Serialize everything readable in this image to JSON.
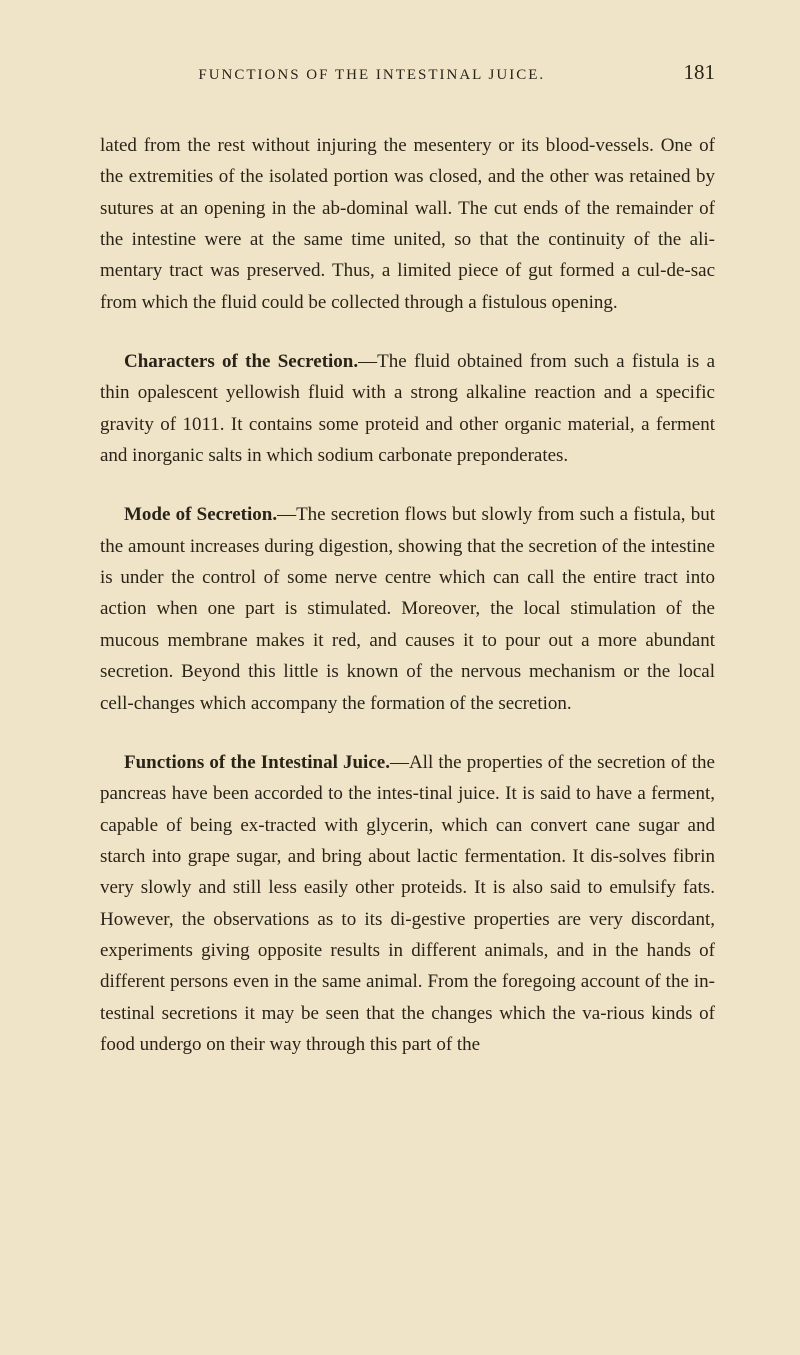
{
  "header": {
    "running_title": "FUNCTIONS OF THE INTESTINAL JUICE.",
    "page_number": "181"
  },
  "paragraphs": {
    "p1": "lated from the rest without injuring the mesentery or its blood-vessels. One of the extremities of the isolated portion was closed, and the other was retained by sutures at an opening in the ab-dominal wall. The cut ends of the remainder of the intestine were at the same time united, so that the continuity of the ali-mentary tract was preserved. Thus, a limited piece of gut formed a cul-de-sac from which the fluid could be collected through a fistulous opening.",
    "p2_title": "Characters of the Secretion.",
    "p2_body": "—The fluid obtained from such a fistula is a thin opalescent yellowish fluid with a strong alkaline reaction and a specific gravity of 1011. It contains some proteid and other organic material, a ferment and inorganic salts in which sodium carbonate preponderates.",
    "p3_title": "Mode of Secretion.",
    "p3_body": "—The secretion flows but slowly from such a fistula, but the amount increases during digestion, showing that the secretion of the intestine is under the control of some nerve centre which can call the entire tract into action when one part is stimulated. Moreover, the local stimulation of the mucous membrane makes it red, and causes it to pour out a more abundant secretion. Beyond this little is known of the nervous mechanism or the local cell-changes which accompany the formation of the secretion.",
    "p4_title": "Functions of the Intestinal Juice.",
    "p4_body": "—All the properties of the secretion of the pancreas have been accorded to the intes-tinal juice. It is said to have a ferment, capable of being ex-tracted with glycerin, which can convert cane sugar and starch into grape sugar, and bring about lactic fermentation. It dis-solves fibrin very slowly and still less easily other proteids. It is also said to emulsify fats. However, the observations as to its di-gestive properties are very discordant, experiments giving opposite results in different animals, and in the hands of different persons even in the same animal. From the foregoing account of the in-testinal secretions it may be seen that the changes which the va-rious kinds of food undergo on their way through this part of the"
  },
  "colors": {
    "background": "#f0e4c8",
    "text": "#2a2418"
  }
}
